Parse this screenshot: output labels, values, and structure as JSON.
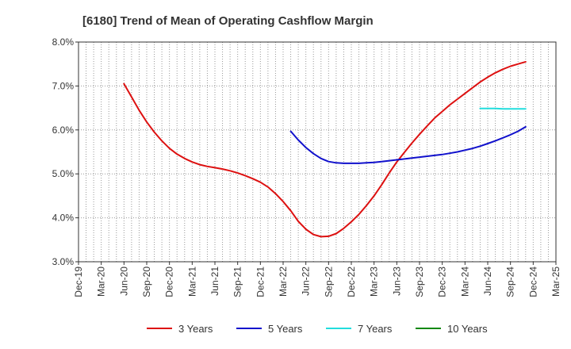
{
  "chart_data": {
    "type": "line",
    "title": "[6180]  Trend of Mean of Operating Cashflow Margin",
    "xlabel": "",
    "ylabel": "",
    "ylim": [
      3.0,
      8.0
    ],
    "y_ticks": [
      "3.0%",
      "4.0%",
      "5.0%",
      "6.0%",
      "7.0%",
      "8.0%"
    ],
    "y_tick_values": [
      3.0,
      4.0,
      5.0,
      6.0,
      7.0,
      8.0
    ],
    "x_ticks": [
      "Dec-19",
      "Mar-20",
      "Jun-20",
      "Sep-20",
      "Dec-20",
      "Mar-21",
      "Jun-21",
      "Sep-21",
      "Dec-21",
      "Mar-22",
      "Jun-22",
      "Sep-22",
      "Dec-22",
      "Mar-23",
      "Jun-23",
      "Sep-23",
      "Dec-23",
      "Mar-24",
      "Jun-24",
      "Sep-24",
      "Dec-24",
      "Mar-25"
    ],
    "grid": true,
    "legend_position": "bottom",
    "series": [
      {
        "name": "3 Years",
        "color": "#dd1111",
        "points": [
          [
            "Jun-20",
            7.05
          ],
          [
            "Jul-20",
            6.75
          ],
          [
            "Aug-20",
            6.45
          ],
          [
            "Sep-20",
            6.18
          ],
          [
            "Oct-20",
            5.95
          ],
          [
            "Nov-20",
            5.75
          ],
          [
            "Dec-20",
            5.58
          ],
          [
            "Jan-21",
            5.45
          ],
          [
            "Feb-21",
            5.35
          ],
          [
            "Mar-21",
            5.27
          ],
          [
            "Apr-21",
            5.21
          ],
          [
            "May-21",
            5.17
          ],
          [
            "Jun-21",
            5.14
          ],
          [
            "Jul-21",
            5.11
          ],
          [
            "Aug-21",
            5.07
          ],
          [
            "Sep-21",
            5.02
          ],
          [
            "Oct-21",
            4.96
          ],
          [
            "Nov-21",
            4.89
          ],
          [
            "Dec-21",
            4.81
          ],
          [
            "Jan-22",
            4.7
          ],
          [
            "Feb-22",
            4.55
          ],
          [
            "Mar-22",
            4.37
          ],
          [
            "Apr-22",
            4.16
          ],
          [
            "May-22",
            3.92
          ],
          [
            "Jun-22",
            3.74
          ],
          [
            "Jul-22",
            3.62
          ],
          [
            "Aug-22",
            3.57
          ],
          [
            "Sep-22",
            3.58
          ],
          [
            "Oct-22",
            3.64
          ],
          [
            "Nov-22",
            3.76
          ],
          [
            "Dec-22",
            3.91
          ],
          [
            "Jan-23",
            4.08
          ],
          [
            "Feb-23",
            4.28
          ],
          [
            "Mar-23",
            4.5
          ],
          [
            "Apr-23",
            4.75
          ],
          [
            "May-23",
            5.02
          ],
          [
            "Jun-23",
            5.27
          ],
          [
            "Jul-23",
            5.49
          ],
          [
            "Aug-23",
            5.7
          ],
          [
            "Sep-23",
            5.9
          ],
          [
            "Oct-23",
            6.09
          ],
          [
            "Nov-23",
            6.27
          ],
          [
            "Dec-23",
            6.42
          ],
          [
            "Jan-24",
            6.57
          ],
          [
            "Feb-24",
            6.7
          ],
          [
            "Mar-24",
            6.83
          ],
          [
            "Apr-24",
            6.96
          ],
          [
            "May-24",
            7.09
          ],
          [
            "Jun-24",
            7.2
          ],
          [
            "Jul-24",
            7.3
          ],
          [
            "Aug-24",
            7.38
          ],
          [
            "Sep-24",
            7.45
          ],
          [
            "Oct-24",
            7.5
          ],
          [
            "Nov-24",
            7.55
          ]
        ]
      },
      {
        "name": "5 Years",
        "color": "#1111cc",
        "points": [
          [
            "Apr-22",
            5.97
          ],
          [
            "May-22",
            5.77
          ],
          [
            "Jun-22",
            5.6
          ],
          [
            "Jul-22",
            5.46
          ],
          [
            "Aug-22",
            5.35
          ],
          [
            "Sep-22",
            5.28
          ],
          [
            "Oct-22",
            5.25
          ],
          [
            "Nov-22",
            5.24
          ],
          [
            "Dec-22",
            5.24
          ],
          [
            "Jan-23",
            5.24
          ],
          [
            "Feb-23",
            5.25
          ],
          [
            "Mar-23",
            5.26
          ],
          [
            "Apr-23",
            5.28
          ],
          [
            "May-23",
            5.3
          ],
          [
            "Jun-23",
            5.32
          ],
          [
            "Jul-23",
            5.34
          ],
          [
            "Aug-23",
            5.36
          ],
          [
            "Sep-23",
            5.38
          ],
          [
            "Oct-23",
            5.4
          ],
          [
            "Nov-23",
            5.42
          ],
          [
            "Dec-23",
            5.44
          ],
          [
            "Jan-24",
            5.47
          ],
          [
            "Feb-24",
            5.5
          ],
          [
            "Mar-24",
            5.54
          ],
          [
            "Apr-24",
            5.58
          ],
          [
            "May-24",
            5.63
          ],
          [
            "Jun-24",
            5.69
          ],
          [
            "Jul-24",
            5.75
          ],
          [
            "Aug-24",
            5.82
          ],
          [
            "Sep-24",
            5.89
          ],
          [
            "Oct-24",
            5.97
          ],
          [
            "Nov-24",
            6.07
          ]
        ]
      },
      {
        "name": "7 Years",
        "color": "#22dddd",
        "points": [
          [
            "May-24",
            6.49
          ],
          [
            "Jun-24",
            6.49
          ],
          [
            "Jul-24",
            6.49
          ],
          [
            "Aug-24",
            6.48
          ],
          [
            "Sep-24",
            6.48
          ],
          [
            "Oct-24",
            6.48
          ],
          [
            "Nov-24",
            6.48
          ]
        ]
      },
      {
        "name": "10 Years",
        "color": "#118811",
        "points": []
      }
    ]
  }
}
